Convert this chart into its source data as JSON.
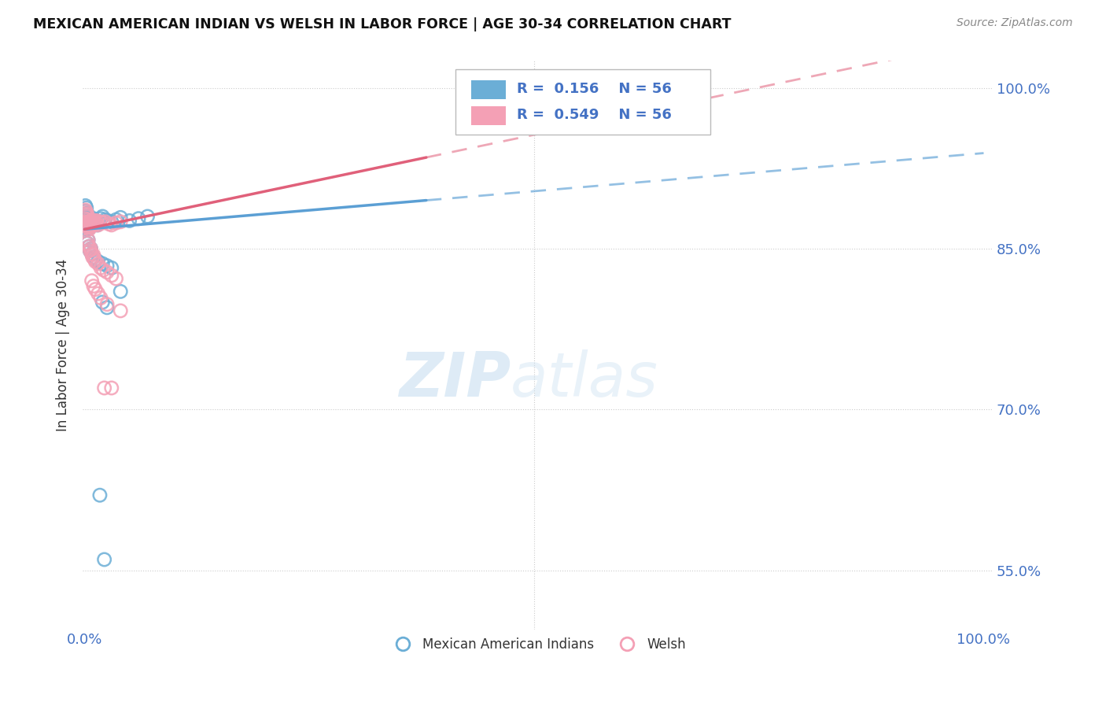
{
  "title": "MEXICAN AMERICAN INDIAN VS WELSH IN LABOR FORCE | AGE 30-34 CORRELATION CHART",
  "source": "Source: ZipAtlas.com",
  "ylabel": "In Labor Force | Age 30-34",
  "y_tick_labels": [
    "55.0%",
    "70.0%",
    "85.0%",
    "100.0%"
  ],
  "y_tick_values": [
    0.55,
    0.7,
    0.85,
    1.0
  ],
  "r_blue": 0.156,
  "r_pink": 0.549,
  "n": 56,
  "color_blue": "#6baed6",
  "color_pink": "#f4a0b5",
  "color_trendline_blue": "#5b9fd4",
  "color_trendline_pink": "#e0607a",
  "blue_x": [
    0.001,
    0.001,
    0.001,
    0.001,
    0.001,
    0.002,
    0.002,
    0.002,
    0.002,
    0.003,
    0.003,
    0.003,
    0.003,
    0.004,
    0.004,
    0.005,
    0.005,
    0.005,
    0.006,
    0.006,
    0.007,
    0.007,
    0.008,
    0.009,
    0.01,
    0.011,
    0.012,
    0.014,
    0.016,
    0.018,
    0.02,
    0.023,
    0.026,
    0.03,
    0.035,
    0.04,
    0.05,
    0.06,
    0.07,
    0.003,
    0.004,
    0.005,
    0.006,
    0.007,
    0.008,
    0.01,
    0.012,
    0.015,
    0.02,
    0.025,
    0.03,
    0.02,
    0.025,
    0.04,
    0.017,
    0.022
  ],
  "blue_y": [
    0.875,
    0.88,
    0.885,
    0.89,
    0.878,
    0.87,
    0.875,
    0.882,
    0.888,
    0.872,
    0.877,
    0.883,
    0.868,
    0.871,
    0.876,
    0.869,
    0.874,
    0.88,
    0.871,
    0.876,
    0.872,
    0.878,
    0.874,
    0.876,
    0.878,
    0.874,
    0.876,
    0.872,
    0.875,
    0.878,
    0.88,
    0.877,
    0.876,
    0.875,
    0.877,
    0.879,
    0.876,
    0.878,
    0.88,
    0.855,
    0.858,
    0.852,
    0.848,
    0.85,
    0.845,
    0.842,
    0.84,
    0.838,
    0.836,
    0.834,
    0.832,
    0.8,
    0.795,
    0.81,
    0.62,
    0.56
  ],
  "pink_x": [
    0.001,
    0.001,
    0.001,
    0.002,
    0.002,
    0.002,
    0.003,
    0.003,
    0.003,
    0.004,
    0.004,
    0.005,
    0.005,
    0.006,
    0.006,
    0.007,
    0.007,
    0.008,
    0.009,
    0.01,
    0.011,
    0.012,
    0.013,
    0.015,
    0.017,
    0.02,
    0.023,
    0.027,
    0.03,
    0.035,
    0.04,
    0.003,
    0.004,
    0.005,
    0.006,
    0.007,
    0.008,
    0.009,
    0.01,
    0.011,
    0.012,
    0.015,
    0.018,
    0.021,
    0.025,
    0.03,
    0.035,
    0.008,
    0.01,
    0.012,
    0.015,
    0.018,
    0.025,
    0.04,
    0.03,
    0.022
  ],
  "pink_y": [
    0.878,
    0.882,
    0.886,
    0.875,
    0.88,
    0.884,
    0.872,
    0.877,
    0.882,
    0.87,
    0.875,
    0.868,
    0.873,
    0.87,
    0.874,
    0.871,
    0.876,
    0.872,
    0.874,
    0.876,
    0.872,
    0.874,
    0.876,
    0.872,
    0.875,
    0.874,
    0.875,
    0.873,
    0.872,
    0.874,
    0.875,
    0.855,
    0.858,
    0.852,
    0.848,
    0.85,
    0.845,
    0.842,
    0.844,
    0.84,
    0.838,
    0.836,
    0.832,
    0.83,
    0.828,
    0.825,
    0.822,
    0.82,
    0.815,
    0.812,
    0.808,
    0.804,
    0.798,
    0.792,
    0.72,
    0.72
  ]
}
